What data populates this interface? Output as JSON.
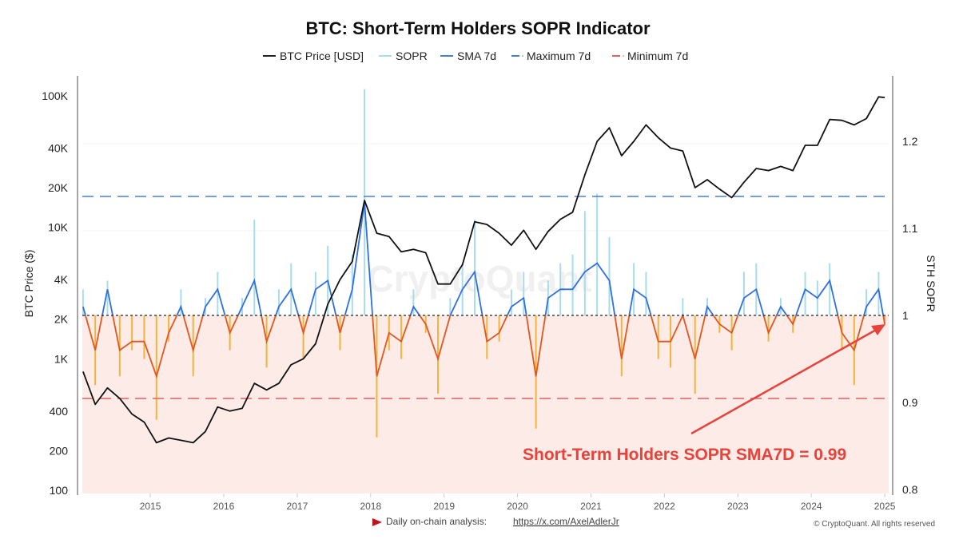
{
  "chart_data": {
    "type": "line",
    "title": "BTC: Short-Term Holders SOPR Indicator",
    "legend": {
      "placement": "top-center",
      "entries": [
        "BTC Price [USD]",
        "SOPR",
        "SMA 7d",
        "Maximum 7d",
        "Minimum 7d"
      ]
    },
    "ylabel_left": "BTC Price ($)",
    "ylabel_right": "STH SOPR",
    "y_left_scale": "log",
    "y_left_ticks": [
      "100",
      "200",
      "400",
      "1K",
      "2K",
      "4K",
      "10K",
      "20K",
      "40K",
      "100K"
    ],
    "y_left_tick_values": [
      100,
      200,
      400,
      1000,
      2000,
      4000,
      10000,
      20000,
      40000,
      100000
    ],
    "y_right_ticks": [
      "0.8",
      "0.9",
      "1",
      "1.1",
      "1.2"
    ],
    "y_right_tick_values": [
      0.8,
      0.9,
      1.0,
      1.1,
      1.2
    ],
    "x_ticks": [
      "2015",
      "2016",
      "2017",
      "2018",
      "2019",
      "2020",
      "2021",
      "2022",
      "2023",
      "2024",
      "2025"
    ],
    "ylim_right": [
      0.8,
      1.28
    ],
    "ylim_left": [
      100,
      140000
    ],
    "xlim": [
      "2014-02",
      "2025-01"
    ],
    "grid": false,
    "reference_lines": {
      "sopr_one": 1.0,
      "maximum_7d": 1.137,
      "minimum_7d": 0.905
    },
    "x": [
      "2014-02",
      "2014-04",
      "2014-06",
      "2014-08",
      "2014-10",
      "2014-12",
      "2015-02",
      "2015-04",
      "2015-06",
      "2015-08",
      "2015-10",
      "2015-12",
      "2016-02",
      "2016-04",
      "2016-06",
      "2016-08",
      "2016-10",
      "2016-12",
      "2017-02",
      "2017-04",
      "2017-06",
      "2017-08",
      "2017-10",
      "2017-12",
      "2018-02",
      "2018-04",
      "2018-06",
      "2018-08",
      "2018-10",
      "2018-12",
      "2019-02",
      "2019-04",
      "2019-06",
      "2019-08",
      "2019-10",
      "2019-12",
      "2020-02",
      "2020-04",
      "2020-06",
      "2020-08",
      "2020-10",
      "2020-12",
      "2021-02",
      "2021-04",
      "2021-06",
      "2021-08",
      "2021-10",
      "2021-12",
      "2022-02",
      "2022-04",
      "2022-06",
      "2022-08",
      "2022-10",
      "2022-12",
      "2023-02",
      "2023-04",
      "2023-06",
      "2023-08",
      "2023-10",
      "2023-12",
      "2024-02",
      "2024-04",
      "2024-06",
      "2024-08",
      "2024-10",
      "2024-12",
      "2025-01"
    ],
    "series": [
      {
        "name": "BTC Price [USD]",
        "axis": "left",
        "color": "#111111",
        "values": [
          800,
          450,
          600,
          500,
          380,
          330,
          230,
          250,
          240,
          230,
          280,
          430,
          400,
          420,
          650,
          580,
          650,
          900,
          1000,
          1300,
          2600,
          4000,
          5500,
          16000,
          9000,
          8500,
          6500,
          6800,
          6400,
          3700,
          3700,
          5200,
          11000,
          10500,
          9000,
          7300,
          9500,
          6800,
          9300,
          11500,
          13000,
          25000,
          45000,
          57000,
          35000,
          45000,
          60000,
          48000,
          40000,
          38000,
          20000,
          23000,
          19500,
          16800,
          22000,
          28000,
          27000,
          29000,
          27000,
          42000,
          42000,
          66000,
          65000,
          60000,
          67000,
          98000,
          97000
        ]
      },
      {
        "name": "SOPR",
        "axis": "right",
        "color": "#a8dcec",
        "color_below": "#f2b43c",
        "values": [
          1.03,
          0.92,
          1.04,
          0.93,
          0.96,
          0.95,
          0.88,
          0.97,
          1.03,
          0.93,
          1.02,
          1.05,
          0.96,
          1.02,
          1.11,
          0.94,
          1.03,
          1.06,
          0.95,
          1.05,
          1.08,
          0.96,
          1.07,
          1.26,
          0.86,
          0.96,
          0.95,
          1.03,
          0.98,
          0.91,
          1.02,
          1.06,
          1.11,
          0.95,
          0.97,
          1.03,
          1.05,
          0.87,
          1.04,
          1.06,
          1.07,
          1.12,
          1.14,
          1.09,
          0.93,
          1.06,
          1.05,
          0.95,
          0.94,
          1.02,
          0.91,
          1.02,
          0.98,
          0.96,
          1.05,
          1.06,
          0.97,
          1.02,
          0.98,
          1.05,
          1.04,
          1.06,
          0.96,
          0.92,
          1.03,
          1.05,
          0.99
        ]
      },
      {
        "name": "SMA 7d",
        "axis": "right",
        "color": "#2f6fe0",
        "color_below": "#e2561f",
        "values": [
          1.01,
          0.96,
          1.03,
          0.96,
          0.97,
          0.97,
          0.93,
          0.98,
          1.01,
          0.96,
          1.01,
          1.03,
          0.98,
          1.01,
          1.04,
          0.97,
          1.01,
          1.03,
          0.98,
          1.03,
          1.04,
          0.98,
          1.03,
          1.13,
          0.93,
          0.98,
          0.97,
          1.01,
          0.99,
          0.95,
          1.0,
          1.03,
          1.05,
          0.97,
          0.98,
          1.01,
          1.02,
          0.93,
          1.02,
          1.03,
          1.03,
          1.05,
          1.06,
          1.04,
          0.95,
          1.03,
          1.02,
          0.97,
          0.97,
          1.0,
          0.95,
          1.01,
          0.99,
          0.98,
          1.02,
          1.03,
          0.98,
          1.01,
          0.99,
          1.03,
          1.02,
          1.04,
          0.98,
          0.96,
          1.01,
          1.03,
          0.99
        ]
      }
    ],
    "annotation": "Short-Term Holders SOPR SMA7D = 0.99",
    "colors": {
      "max_line": "#4a7fd4",
      "min_line": "#e06060",
      "below_one_fill": "#fcebe6",
      "annotation": "#e8423a"
    },
    "watermark": "CryptoQuant"
  },
  "footer": {
    "analysis_label": "Daily on-chain analysis:",
    "analysis_link": "https://x.com/AxelAdlerJr",
    "copyright": "© CryptoQuant. All rights reserved"
  }
}
